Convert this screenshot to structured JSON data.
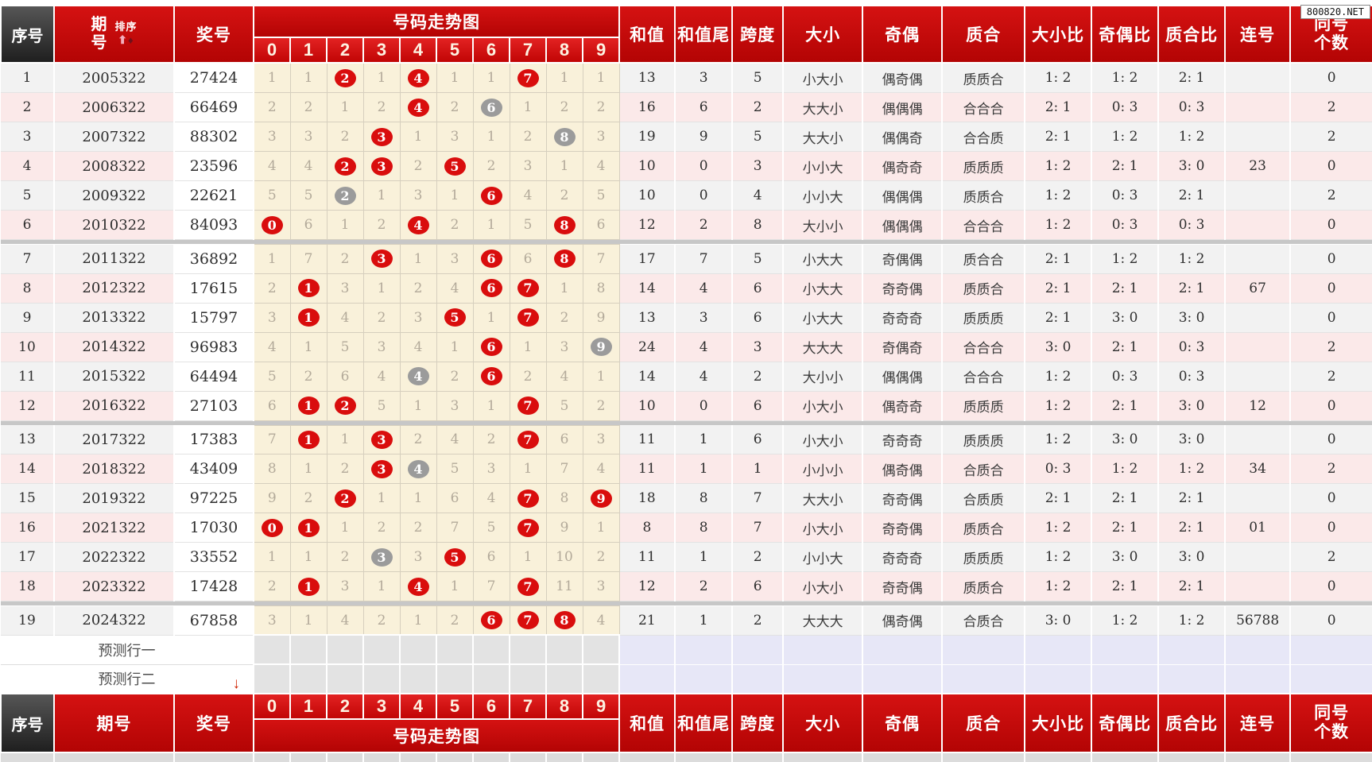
{
  "watermark": "800820.NET",
  "header": {
    "seq": "序号",
    "period": "期号",
    "period_line1": "期",
    "period_line2": "号",
    "sort_label": "排序",
    "sort_up_icon": "⬆",
    "sort_down_icon": "♦",
    "prize": "奖号",
    "trend_title": "号码走势图",
    "digits": [
      "0",
      "1",
      "2",
      "3",
      "4",
      "5",
      "6",
      "7",
      "8",
      "9"
    ],
    "sum": "和值",
    "sum_tail": "和值尾",
    "span": "跨度",
    "size": "大小",
    "parity": "奇偶",
    "prime": "质合",
    "size_ratio": "大小比",
    "parity_ratio": "奇偶比",
    "prime_ratio": "质合比",
    "consecutive": "连号",
    "same_line1": "同号",
    "same_line2": "个数",
    "pred_arrow_icon": "↓"
  },
  "colors": {
    "header_red": "#c40606",
    "header_dark": "#2b2b2b",
    "hit_red": "#d90d0d",
    "hit_gray": "#9b9b9b",
    "row_gray": "#f2f2f2",
    "row_pink": "#fbe9e9",
    "trend_bg": "#f9f1da",
    "pred_lavender": "#e7e7f7"
  },
  "separators_after": [
    6,
    12,
    18
  ],
  "rows": [
    {
      "seq": "1",
      "period": "2005322",
      "prize": "27424",
      "trend": [
        "1",
        "1",
        "2R",
        "1",
        "4R",
        "1",
        "1",
        "7R",
        "1",
        "1"
      ],
      "sum": "13",
      "tail": "3",
      "span": "5",
      "size": "小大小",
      "parity": "偶奇偶",
      "prime": "质质合",
      "size_ratio": "1: 2",
      "parity_ratio": "1: 2",
      "prime_ratio": "2: 1",
      "consec": "",
      "same": "0"
    },
    {
      "seq": "2",
      "period": "2006322",
      "prize": "66469",
      "trend": [
        "2",
        "2",
        "1",
        "2",
        "4R",
        "2",
        "6G",
        "1",
        "2",
        "2"
      ],
      "sum": "16",
      "tail": "6",
      "span": "2",
      "size": "大大小",
      "parity": "偶偶偶",
      "prime": "合合合",
      "size_ratio": "2: 1",
      "parity_ratio": "0: 3",
      "prime_ratio": "0: 3",
      "consec": "",
      "same": "2"
    },
    {
      "seq": "3",
      "period": "2007322",
      "prize": "88302",
      "trend": [
        "3",
        "3",
        "2",
        "3R",
        "1",
        "3",
        "1",
        "2",
        "8G",
        "3"
      ],
      "sum": "19",
      "tail": "9",
      "span": "5",
      "size": "大大小",
      "parity": "偶偶奇",
      "prime": "合合质",
      "size_ratio": "2: 1",
      "parity_ratio": "1: 2",
      "prime_ratio": "1: 2",
      "consec": "",
      "same": "2"
    },
    {
      "seq": "4",
      "period": "2008322",
      "prize": "23596",
      "trend": [
        "4",
        "4",
        "2R",
        "3R",
        "2",
        "5R",
        "2",
        "3",
        "1",
        "4"
      ],
      "sum": "10",
      "tail": "0",
      "span": "3",
      "size": "小小大",
      "parity": "偶奇奇",
      "prime": "质质质",
      "size_ratio": "1: 2",
      "parity_ratio": "2: 1",
      "prime_ratio": "3: 0",
      "consec": "23",
      "same": "0"
    },
    {
      "seq": "5",
      "period": "2009322",
      "prize": "22621",
      "trend": [
        "5",
        "5",
        "2G",
        "1",
        "3",
        "1",
        "6R",
        "4",
        "2",
        "5"
      ],
      "sum": "10",
      "tail": "0",
      "span": "4",
      "size": "小小大",
      "parity": "偶偶偶",
      "prime": "质质合",
      "size_ratio": "1: 2",
      "parity_ratio": "0: 3",
      "prime_ratio": "2: 1",
      "consec": "",
      "same": "2"
    },
    {
      "seq": "6",
      "period": "2010322",
      "prize": "84093",
      "trend": [
        "0R",
        "6",
        "1",
        "2",
        "4R",
        "2",
        "1",
        "5",
        "8R",
        "6"
      ],
      "sum": "12",
      "tail": "2",
      "span": "8",
      "size": "大小小",
      "parity": "偶偶偶",
      "prime": "合合合",
      "size_ratio": "1: 2",
      "parity_ratio": "0: 3",
      "prime_ratio": "0: 3",
      "consec": "",
      "same": "0"
    },
    {
      "seq": "7",
      "period": "2011322",
      "prize": "36892",
      "trend": [
        "1",
        "7",
        "2",
        "3R",
        "1",
        "3",
        "6R",
        "6",
        "8R",
        "7"
      ],
      "sum": "17",
      "tail": "7",
      "span": "5",
      "size": "小大大",
      "parity": "奇偶偶",
      "prime": "质合合",
      "size_ratio": "2: 1",
      "parity_ratio": "1: 2",
      "prime_ratio": "1: 2",
      "consec": "",
      "same": "0"
    },
    {
      "seq": "8",
      "period": "2012322",
      "prize": "17615",
      "trend": [
        "2",
        "1R",
        "3",
        "1",
        "2",
        "4",
        "6R",
        "7R",
        "1",
        "8"
      ],
      "sum": "14",
      "tail": "4",
      "span": "6",
      "size": "小大大",
      "parity": "奇奇偶",
      "prime": "质质合",
      "size_ratio": "2: 1",
      "parity_ratio": "2: 1",
      "prime_ratio": "2: 1",
      "consec": "67",
      "same": "0"
    },
    {
      "seq": "9",
      "period": "2013322",
      "prize": "15797",
      "trend": [
        "3",
        "1R",
        "4",
        "2",
        "3",
        "5R",
        "1",
        "7R",
        "2",
        "9"
      ],
      "sum": "13",
      "tail": "3",
      "span": "6",
      "size": "小大大",
      "parity": "奇奇奇",
      "prime": "质质质",
      "size_ratio": "2: 1",
      "parity_ratio": "3: 0",
      "prime_ratio": "3: 0",
      "consec": "",
      "same": "0"
    },
    {
      "seq": "10",
      "period": "2014322",
      "prize": "96983",
      "trend": [
        "4",
        "1",
        "5",
        "3",
        "4",
        "1",
        "6R",
        "1",
        "3",
        "9G"
      ],
      "sum": "24",
      "tail": "4",
      "span": "3",
      "size": "大大大",
      "parity": "奇偶奇",
      "prime": "合合合",
      "size_ratio": "3: 0",
      "parity_ratio": "2: 1",
      "prime_ratio": "0: 3",
      "consec": "",
      "same": "2"
    },
    {
      "seq": "11",
      "period": "2015322",
      "prize": "64494",
      "trend": [
        "5",
        "2",
        "6",
        "4",
        "4G",
        "2",
        "6R",
        "2",
        "4",
        "1"
      ],
      "sum": "14",
      "tail": "4",
      "span": "2",
      "size": "大小小",
      "parity": "偶偶偶",
      "prime": "合合合",
      "size_ratio": "1: 2",
      "parity_ratio": "0: 3",
      "prime_ratio": "0: 3",
      "consec": "",
      "same": "2"
    },
    {
      "seq": "12",
      "period": "2016322",
      "prize": "27103",
      "trend": [
        "6",
        "1R",
        "2R",
        "5",
        "1",
        "3",
        "1",
        "7R",
        "5",
        "2"
      ],
      "sum": "10",
      "tail": "0",
      "span": "6",
      "size": "小大小",
      "parity": "偶奇奇",
      "prime": "质质质",
      "size_ratio": "1: 2",
      "parity_ratio": "2: 1",
      "prime_ratio": "3: 0",
      "consec": "12",
      "same": "0"
    },
    {
      "seq": "13",
      "period": "2017322",
      "prize": "17383",
      "trend": [
        "7",
        "1R",
        "1",
        "3R",
        "2",
        "4",
        "2",
        "7R",
        "6",
        "3"
      ],
      "sum": "11",
      "tail": "1",
      "span": "6",
      "size": "小大小",
      "parity": "奇奇奇",
      "prime": "质质质",
      "size_ratio": "1: 2",
      "parity_ratio": "3: 0",
      "prime_ratio": "3: 0",
      "consec": "",
      "same": "0"
    },
    {
      "seq": "14",
      "period": "2018322",
      "prize": "43409",
      "trend": [
        "8",
        "1",
        "2",
        "3R",
        "4G",
        "5",
        "3",
        "1",
        "7",
        "4"
      ],
      "sum": "11",
      "tail": "1",
      "span": "1",
      "size": "小小小",
      "parity": "偶奇偶",
      "prime": "合质合",
      "size_ratio": "0: 3",
      "parity_ratio": "1: 2",
      "prime_ratio": "1: 2",
      "consec": "34",
      "same": "2"
    },
    {
      "seq": "15",
      "period": "2019322",
      "prize": "97225",
      "trend": [
        "9",
        "2",
        "2R",
        "1",
        "1",
        "6",
        "4",
        "7R",
        "8",
        "9R"
      ],
      "sum": "18",
      "tail": "8",
      "span": "7",
      "size": "大大小",
      "parity": "奇奇偶",
      "prime": "合质质",
      "size_ratio": "2: 1",
      "parity_ratio": "2: 1",
      "prime_ratio": "2: 1",
      "consec": "",
      "same": "0"
    },
    {
      "seq": "16",
      "period": "2021322",
      "prize": "17030",
      "trend": [
        "0R",
        "1R",
        "1",
        "2",
        "2",
        "7",
        "5",
        "7R",
        "9",
        "1"
      ],
      "sum": "8",
      "tail": "8",
      "span": "7",
      "size": "小大小",
      "parity": "奇奇偶",
      "prime": "质质合",
      "size_ratio": "1: 2",
      "parity_ratio": "2: 1",
      "prime_ratio": "2: 1",
      "consec": "01",
      "same": "0"
    },
    {
      "seq": "17",
      "period": "2022322",
      "prize": "33552",
      "trend": [
        "1",
        "1",
        "2",
        "3G",
        "3",
        "5R",
        "6",
        "1",
        "10",
        "2"
      ],
      "sum": "11",
      "tail": "1",
      "span": "2",
      "size": "小小大",
      "parity": "奇奇奇",
      "prime": "质质质",
      "size_ratio": "1: 2",
      "parity_ratio": "3: 0",
      "prime_ratio": "3: 0",
      "consec": "",
      "same": "2"
    },
    {
      "seq": "18",
      "period": "2023322",
      "prize": "17428",
      "trend": [
        "2",
        "1R",
        "3",
        "1",
        "4R",
        "1",
        "7",
        "7R",
        "11",
        "3"
      ],
      "sum": "12",
      "tail": "2",
      "span": "6",
      "size": "小大小",
      "parity": "奇奇偶",
      "prime": "质质合",
      "size_ratio": "1: 2",
      "parity_ratio": "2: 1",
      "prime_ratio": "2: 1",
      "consec": "",
      "same": "0"
    },
    {
      "seq": "19",
      "period": "2024322",
      "prize": "67858",
      "trend": [
        "3",
        "1",
        "4",
        "2",
        "1",
        "2",
        "6R",
        "7R",
        "8R",
        "4"
      ],
      "sum": "21",
      "tail": "1",
      "span": "2",
      "size": "大大大",
      "parity": "偶奇偶",
      "prime": "合质合",
      "size_ratio": "3: 0",
      "parity_ratio": "1: 2",
      "prime_ratio": "1: 2",
      "consec": "56788",
      "same": "0"
    }
  ],
  "prediction_rows": [
    {
      "label": "预测行一",
      "arrow": false
    },
    {
      "label": "预测行二",
      "arrow": true
    }
  ]
}
